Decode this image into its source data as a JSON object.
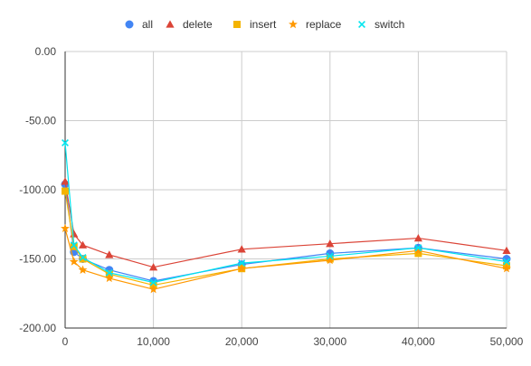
{
  "chart_data": {
    "type": "line",
    "title": "",
    "xlabel": "",
    "ylabel": "",
    "xlim": [
      0,
      50000
    ],
    "ylim": [
      -200,
      0
    ],
    "x_ticks": [
      0,
      10000,
      20000,
      30000,
      40000,
      50000
    ],
    "x_tick_labels": [
      "0",
      "10,000",
      "20,000",
      "30,000",
      "40,000",
      "50,000"
    ],
    "y_ticks": [
      0,
      -50,
      -100,
      -150,
      -200
    ],
    "y_tick_labels": [
      "0.00",
      "-50.00",
      "-100.00",
      "-150.00",
      "-200.00"
    ],
    "grid": true,
    "legend_position": "top",
    "x": [
      0,
      1000,
      2000,
      5000,
      10000,
      20000,
      30000,
      40000,
      50000
    ],
    "series": [
      {
        "name": "all",
        "color": "#4285f4",
        "marker": "circle",
        "values": [
          -96,
          -145,
          -150,
          -158,
          -166,
          -154,
          -146,
          -142,
          -150
        ]
      },
      {
        "name": "delete",
        "color": "#db4437",
        "marker": "triangle",
        "values": [
          -94,
          -132,
          -140,
          -147,
          -156,
          -143,
          -139,
          -135,
          -144
        ]
      },
      {
        "name": "insert",
        "color": "#f4b400",
        "marker": "square",
        "values": [
          -101,
          -141,
          -150,
          -161,
          -169,
          -157,
          -150,
          -146,
          -155
        ]
      },
      {
        "name": "replace",
        "color": "#ff9800",
        "marker": "star",
        "values": [
          -128,
          -152,
          -158,
          -164,
          -172,
          -157,
          -151,
          -144,
          -157
        ]
      },
      {
        "name": "switch",
        "color": "#00e5ee",
        "marker": "x",
        "values": [
          -66,
          -140,
          -149,
          -160,
          -167,
          -153,
          -148,
          -142,
          -152
        ]
      }
    ]
  }
}
